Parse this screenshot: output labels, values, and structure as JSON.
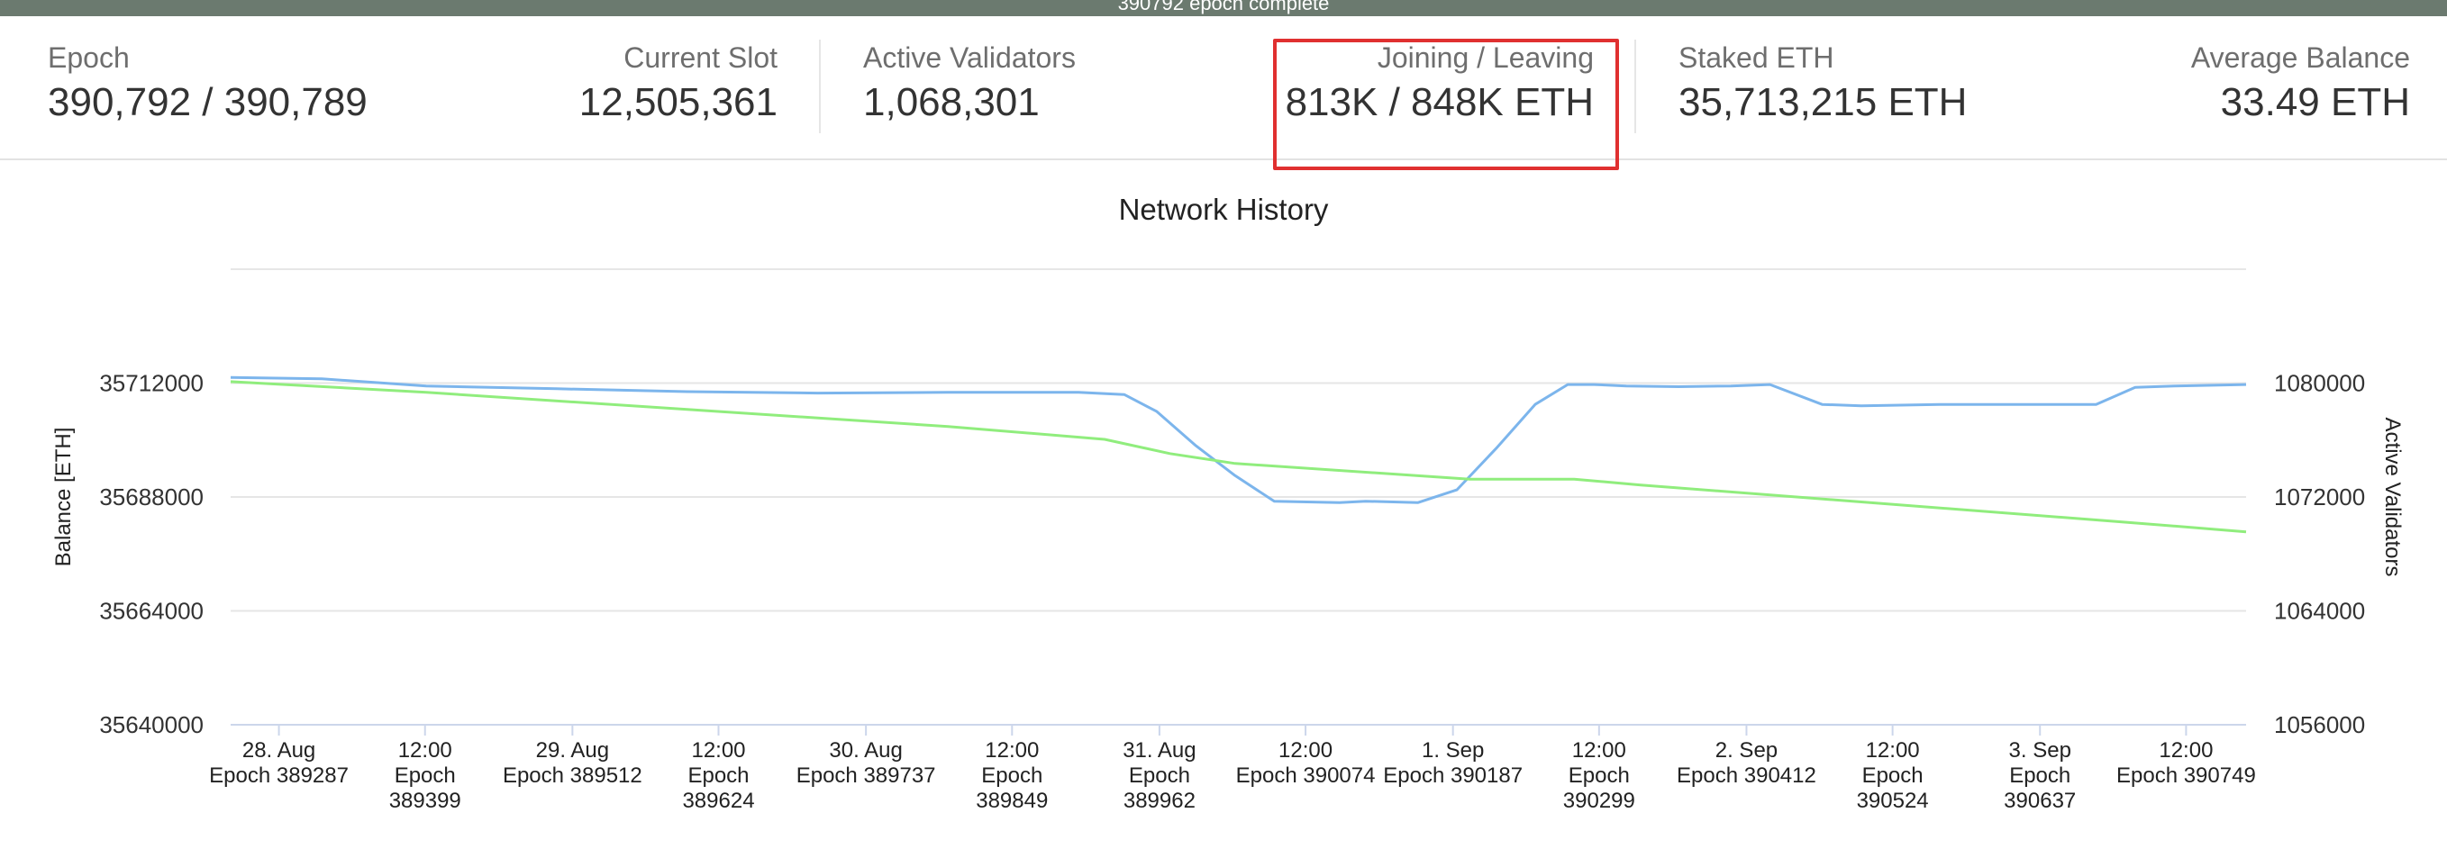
{
  "banner": {
    "text": "390792 epoch complete"
  },
  "stats": {
    "epoch": {
      "label": "Epoch",
      "value": "390,792 / 390,789"
    },
    "current_slot": {
      "label": "Current Slot",
      "value": "12,505,361"
    },
    "active_validators": {
      "label": "Active Validators",
      "value": "1,068,301"
    },
    "joining_leaving": {
      "label": "Joining / Leaving",
      "value": "813K / 848K ETH"
    },
    "staked_eth": {
      "label": "Staked ETH",
      "value": "35,713,215 ETH"
    },
    "average_balance": {
      "label": "Average Balance",
      "value": "33.49 ETH"
    }
  },
  "colors": {
    "balance_line": "#7cb5ec",
    "validators_line": "#90ed7d",
    "highlight": "#e03030",
    "banner_bg": "#6b7a6f"
  },
  "chart_data": {
    "type": "line",
    "title": "Network History",
    "ylabel": "Balance [ETH]",
    "y2label": "Active Validators",
    "ylim": [
      35640000,
      35736000
    ],
    "y2lim": [
      1056000,
      1088000
    ],
    "yticks": [
      35640000,
      35664000,
      35688000,
      35712000
    ],
    "y2ticks": [
      1056000,
      1064000,
      1072000,
      1080000
    ],
    "xlim": [
      389250,
      390795
    ],
    "xticks": [
      {
        "x": 389287,
        "lines": [
          "28. Aug",
          "Epoch 389287"
        ]
      },
      {
        "x": 389399,
        "lines": [
          "12:00",
          "Epoch",
          "389399"
        ]
      },
      {
        "x": 389512,
        "lines": [
          "29. Aug",
          "Epoch 389512"
        ]
      },
      {
        "x": 389624,
        "lines": [
          "12:00",
          "Epoch",
          "389624"
        ]
      },
      {
        "x": 389737,
        "lines": [
          "30. Aug",
          "Epoch 389737"
        ]
      },
      {
        "x": 389849,
        "lines": [
          "12:00",
          "Epoch",
          "389849"
        ]
      },
      {
        "x": 389962,
        "lines": [
          "31. Aug",
          "Epoch",
          "389962"
        ]
      },
      {
        "x": 390074,
        "lines": [
          "12:00",
          "Epoch 390074"
        ]
      },
      {
        "x": 390187,
        "lines": [
          "1. Sep",
          "Epoch 390187"
        ]
      },
      {
        "x": 390299,
        "lines": [
          "12:00",
          "Epoch",
          "390299"
        ]
      },
      {
        "x": 390412,
        "lines": [
          "2. Sep",
          "Epoch 390412"
        ]
      },
      {
        "x": 390524,
        "lines": [
          "12:00",
          "Epoch",
          "390524"
        ]
      },
      {
        "x": 390637,
        "lines": [
          "3. Sep",
          "Epoch",
          "390637"
        ]
      },
      {
        "x": 390749,
        "lines": [
          "12:00",
          "Epoch 390749"
        ]
      }
    ],
    "series": [
      {
        "axis": "y2",
        "x": [
          389250,
          389320,
          389400,
          389500,
          389600,
          389700,
          389800,
          389900,
          389935,
          389960,
          389990,
          390020,
          390050,
          390100,
          390120,
          390160,
          390190,
          390220,
          390250,
          390275,
          390295,
          390320,
          390360,
          390400,
          390430,
          390470,
          390500,
          390530,
          390560,
          390600,
          390640,
          390680,
          390710,
          390740,
          390770,
          390795
        ],
        "values": [
          1080400,
          1080300,
          1079800,
          1079600,
          1079400,
          1079300,
          1079350,
          1079350,
          1079200,
          1078000,
          1075600,
          1073500,
          1071700,
          1071600,
          1071700,
          1071600,
          1072500,
          1075400,
          1078500,
          1079900,
          1079900,
          1079800,
          1079750,
          1079800,
          1079900,
          1078500,
          1078400,
          1078450,
          1078500,
          1078500,
          1078500,
          1078500,
          1079700,
          1079800,
          1079850,
          1079900
        ]
      },
      {
        "axis": "y2",
        "x": [
          389250,
          389400,
          389600,
          389800,
          389920,
          389970,
          390020,
          390200,
          390280,
          390330,
          390500,
          390700,
          390795
        ],
        "values": [
          1080100,
          1079350,
          1078150,
          1076950,
          1076050,
          1075050,
          1074350,
          1073250,
          1073250,
          1072850,
          1071650,
          1070250,
          1069550
        ]
      }
    ]
  }
}
